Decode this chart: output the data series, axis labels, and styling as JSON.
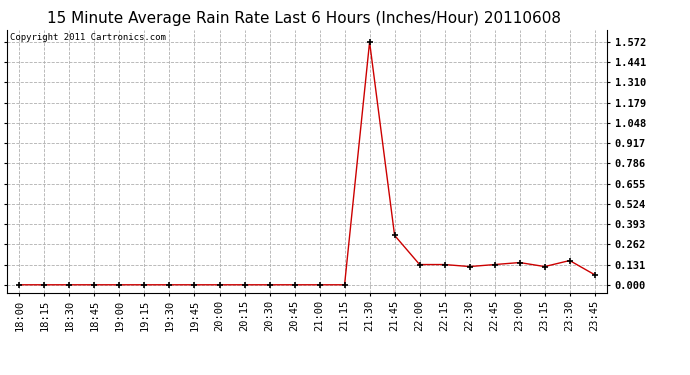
{
  "title": "15 Minute Average Rain Rate Last 6 Hours (Inches/Hour) 20110608",
  "copyright": "Copyright 2011 Cartronics.com",
  "line_color": "#cc0000",
  "marker": "+",
  "marker_color": "#000000",
  "background_color": "#ffffff",
  "plot_bg_color": "#ffffff",
  "grid_color": "#b0b0b0",
  "grid_style": "--",
  "yticks": [
    0.0,
    0.131,
    0.262,
    0.393,
    0.524,
    0.655,
    0.786,
    0.917,
    1.048,
    1.179,
    1.31,
    1.441,
    1.572
  ],
  "ylim": [
    -0.05,
    1.65
  ],
  "x_labels": [
    "18:00",
    "18:15",
    "18:30",
    "18:45",
    "19:00",
    "19:15",
    "19:30",
    "19:45",
    "20:00",
    "20:15",
    "20:30",
    "20:45",
    "21:00",
    "21:15",
    "21:30",
    "21:45",
    "22:00",
    "22:15",
    "22:30",
    "22:45",
    "23:00",
    "23:15",
    "23:30",
    "23:45"
  ],
  "y_values": [
    0.0,
    0.0,
    0.0,
    0.0,
    0.0,
    0.0,
    0.0,
    0.0,
    0.0,
    0.0,
    0.0,
    0.0,
    0.0,
    0.0,
    1.572,
    0.32,
    0.131,
    0.131,
    0.118,
    0.131,
    0.144,
    0.118,
    0.157,
    0.065
  ],
  "title_fontsize": 11,
  "tick_fontsize": 7.5,
  "copyright_fontsize": 6.5,
  "figsize": [
    6.9,
    3.75
  ],
  "dpi": 100
}
